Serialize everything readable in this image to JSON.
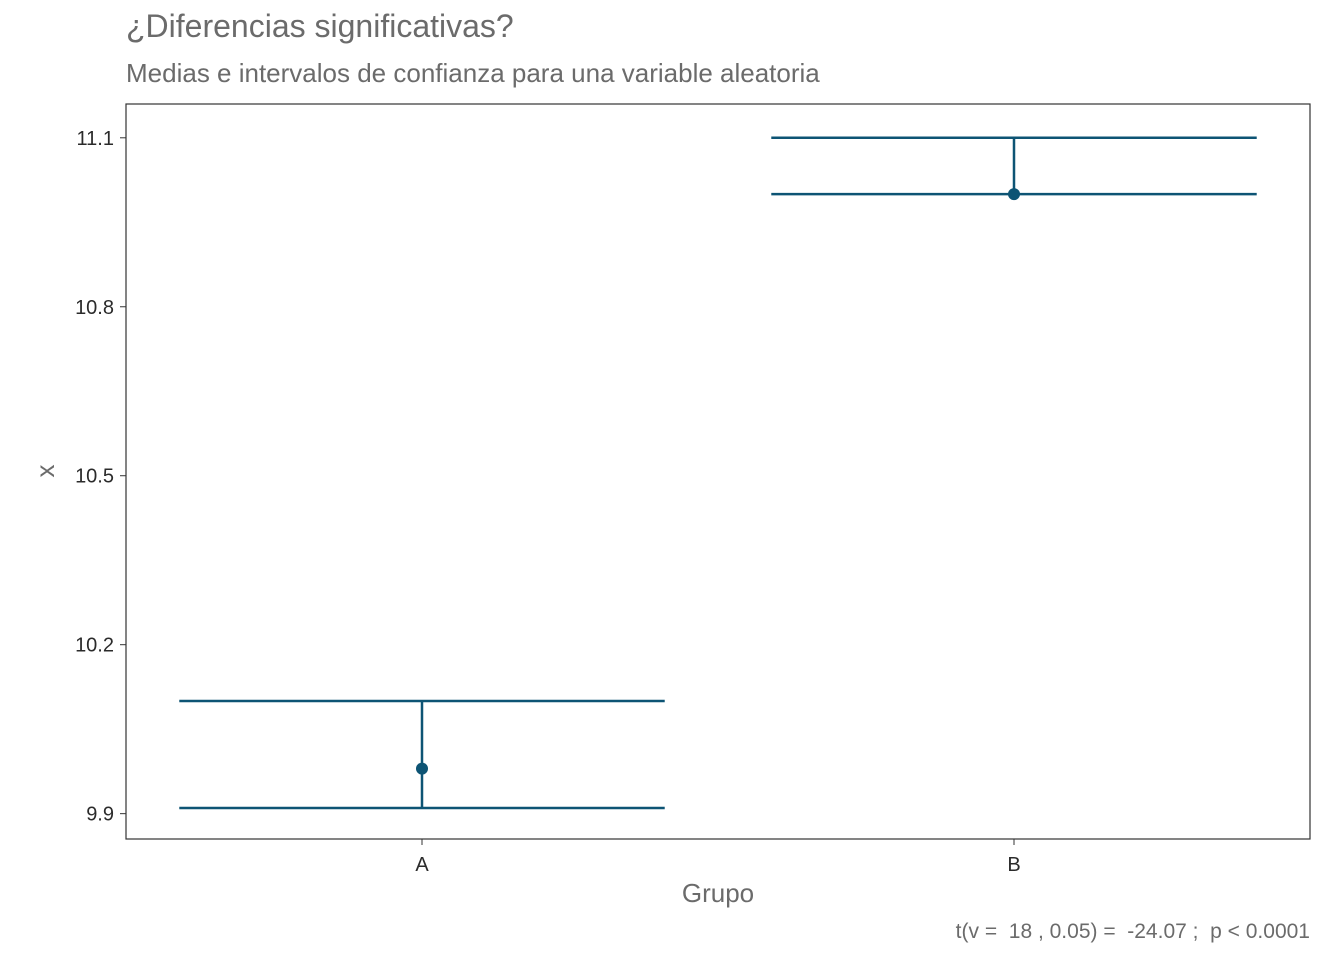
{
  "title": "¿Diferencias significativas?",
  "subtitle": "Medias e intervalos de confianza para una variable aleatoria",
  "caption": "t(v =  18 , 0.05) =  -24.07 ;  p < 0.0001",
  "chart_data": {
    "type": "errorbar",
    "xlabel": "Grupo",
    "ylabel": "x",
    "categories": [
      "A",
      "B"
    ],
    "means": [
      9.98,
      11.0
    ],
    "lower": [
      9.91,
      11.0
    ],
    "upper": [
      10.1,
      11.1
    ],
    "ylim": [
      9.855,
      11.16
    ],
    "yticks": [
      9.9,
      10.2,
      10.5,
      10.8,
      11.1
    ],
    "ytick_labels": [
      "9.9",
      "10.2",
      "10.5",
      "10.8",
      "11.1"
    ],
    "grid": false,
    "color": "#0d5474"
  }
}
